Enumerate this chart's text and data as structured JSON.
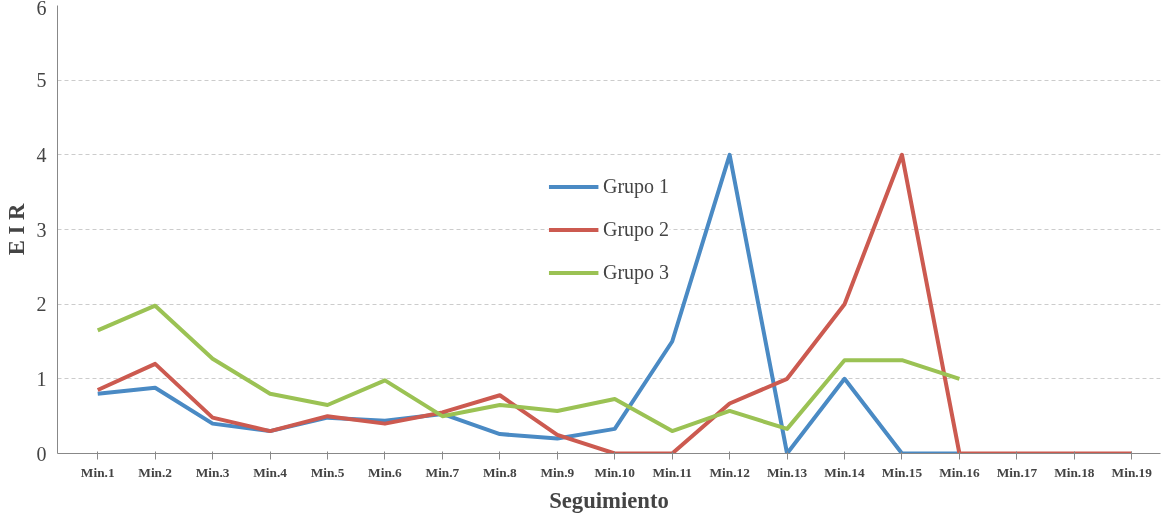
{
  "chart_data": {
    "type": "line",
    "xlabel": "Seguimiento",
    "ylabel": "E I R",
    "categories": [
      "Min.1",
      "Min.2",
      "Min.3",
      "Min.4",
      "Min.5",
      "Min.6",
      "Min.7",
      "Min.8",
      "Min.9",
      "Min.10",
      "Min.11",
      "Min.12",
      "Min.13",
      "Min.14",
      "Min.15",
      "Min.16",
      "Min.17",
      "Min.18",
      "Min.19"
    ],
    "series": [
      {
        "name": "Grupo 1",
        "color": "#4a8ac4",
        "values": [
          0.8,
          0.88,
          0.4,
          0.3,
          0.48,
          0.44,
          0.53,
          0.26,
          0.2,
          0.33,
          1.5,
          4,
          0,
          1,
          0,
          0,
          null,
          null,
          null
        ]
      },
      {
        "name": "Grupo 2",
        "color": "#cc5a50",
        "values": [
          0.85,
          1.2,
          0.48,
          0.3,
          0.5,
          0.4,
          0.55,
          0.78,
          0.25,
          0,
          0,
          0.67,
          1,
          2,
          4,
          0,
          0,
          0,
          0
        ]
      },
      {
        "name": "Grupo 3",
        "color": "#9bc254",
        "values": [
          1.65,
          1.98,
          1.27,
          0.8,
          0.65,
          0.98,
          0.5,
          0.65,
          0.57,
          0.73,
          0.3,
          0.57,
          0.33,
          1.25,
          1.25,
          1,
          null,
          null,
          null
        ]
      }
    ],
    "ylim": [
      0,
      6
    ],
    "yticks": [
      0,
      1,
      2,
      3,
      4,
      5,
      6
    ],
    "grid": "y",
    "legend": "center",
    "marker": "none",
    "line_style": "solid"
  }
}
